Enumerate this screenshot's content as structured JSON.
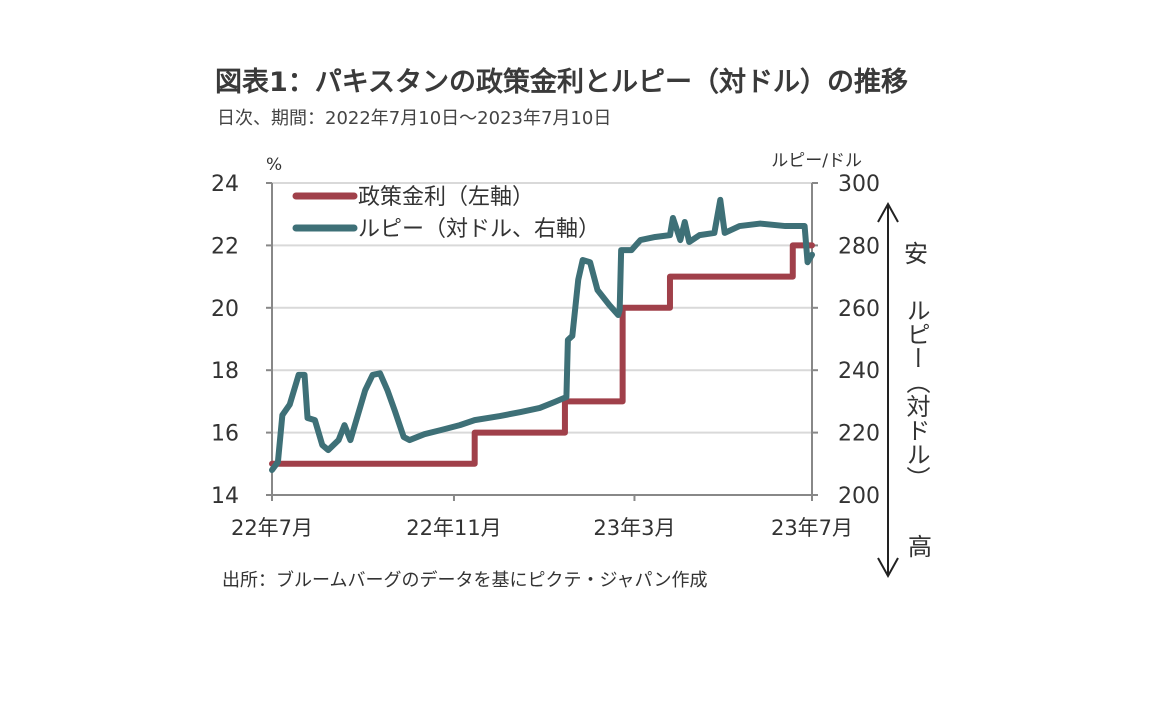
{
  "title": "図表1：パキスタンの政策金利とルピー（対ドル）の推移",
  "subtitle": "日次、期間：2022年7月10日～2023年7月10日",
  "source": "出所：ブルームバーグのデータを基にピクテ・ジャパン作成",
  "chart_data": {
    "type": "line",
    "title": "図表1：パキスタンの政策金利とルピー（対ドル）の推移",
    "x_unit": "days since 2022-07-10",
    "xlim": [
      0,
      365
    ],
    "x_ticks": [
      {
        "day": 0,
        "label": "22年7月"
      },
      {
        "day": 123,
        "label": "22年11月"
      },
      {
        "day": 245,
        "label": "23年3月"
      },
      {
        "day": 365,
        "label": "23年7月"
      }
    ],
    "left_axis": {
      "label": "%",
      "ylim": [
        14,
        24
      ],
      "ticks": [
        14,
        16,
        18,
        20,
        22,
        24
      ]
    },
    "right_axis": {
      "label": "ルピー/ドル",
      "ylim": [
        200,
        300
      ],
      "ticks": [
        200,
        220,
        240,
        260,
        280,
        300
      ]
    },
    "grid": true,
    "legend_position": "top-left",
    "series": [
      {
        "name": "政策金利（左軸）",
        "axis": "left",
        "step": true,
        "color": "#a0404a",
        "points": [
          [
            0,
            15
          ],
          [
            137,
            16
          ],
          [
            198,
            17
          ],
          [
            237,
            20
          ],
          [
            269,
            21
          ],
          [
            352,
            22
          ],
          [
            365,
            22
          ]
        ]
      },
      {
        "name": "ルピー（対ドル、右軸）",
        "axis": "right",
        "color": "#3e7077",
        "points": [
          [
            0,
            208
          ],
          [
            4,
            210.6
          ],
          [
            7,
            225.6
          ],
          [
            12,
            229
          ],
          [
            18,
            238.5
          ],
          [
            22,
            238.5
          ],
          [
            24,
            224.7
          ],
          [
            29,
            224
          ],
          [
            34,
            216
          ],
          [
            38,
            214.4
          ],
          [
            45,
            217.6
          ],
          [
            49,
            222.4
          ],
          [
            53,
            217.6
          ],
          [
            57,
            224
          ],
          [
            63,
            233.6
          ],
          [
            68,
            238.5
          ],
          [
            73,
            239
          ],
          [
            78,
            233.6
          ],
          [
            83,
            227
          ],
          [
            89,
            218.6
          ],
          [
            93,
            217.6
          ],
          [
            103,
            219.5
          ],
          [
            114,
            220.8
          ],
          [
            127,
            222.4
          ],
          [
            137,
            224
          ],
          [
            154,
            225.3
          ],
          [
            168,
            226.6
          ],
          [
            181,
            227.9
          ],
          [
            191,
            229.8
          ],
          [
            199,
            231.4
          ],
          [
            200,
            249.7
          ],
          [
            203,
            251
          ],
          [
            207,
            269
          ],
          [
            210,
            275.3
          ],
          [
            215,
            274.6
          ],
          [
            220,
            265.7
          ],
          [
            228,
            260.9
          ],
          [
            234,
            257.7
          ],
          [
            235,
            259.3
          ],
          [
            236,
            278.5
          ],
          [
            243,
            278.5
          ],
          [
            249,
            281.7
          ],
          [
            259,
            282.7
          ],
          [
            269,
            283.3
          ],
          [
            271,
            288.8
          ],
          [
            276,
            281.7
          ],
          [
            279,
            287.5
          ],
          [
            282,
            281.1
          ],
          [
            289,
            283.3
          ],
          [
            299,
            284
          ],
          [
            303,
            294.6
          ],
          [
            306,
            284
          ],
          [
            316,
            286.2
          ],
          [
            330,
            287
          ],
          [
            347,
            286.2
          ],
          [
            360,
            286.2
          ],
          [
            362,
            274.6
          ],
          [
            365,
            277
          ]
        ]
      }
    ],
    "annotation": {
      "top": "安",
      "bottom": "高",
      "label": "ルピー（対ドル）"
    }
  }
}
